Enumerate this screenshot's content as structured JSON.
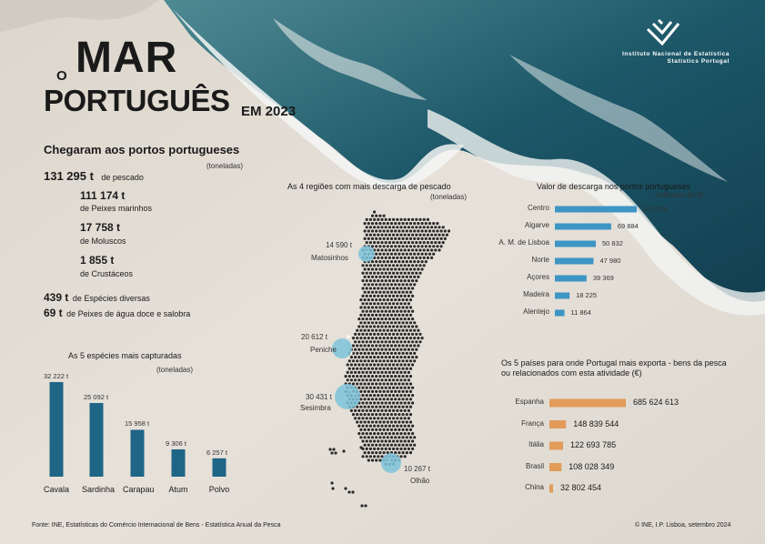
{
  "colors": {
    "bar_blue": "#1f6586",
    "bar_orange": "#e39b5a",
    "highlight": "#7ec3da",
    "sand": "#e4dfd6",
    "ocean": "#1d5366"
  },
  "title": {
    "o": "O",
    "mar": "MAR",
    "portugues": "PORTUGUÊS",
    "em": "EM 2023"
  },
  "logo": {
    "line1": "Instituto Nacional de Estatística",
    "line2": "Statistics Portugal"
  },
  "landings": {
    "heading": "Chegaram aos portos portugueses",
    "unit": "(toneladas)",
    "total_value": "131 295 t",
    "total_label": "de pescado",
    "items": [
      {
        "value": "111 174 t",
        "label": "de Peixes marinhos"
      },
      {
        "value": "17 758 t",
        "label": "de Moluscos"
      },
      {
        "value": "1 855 t",
        "label": "de Crustáceos"
      }
    ],
    "extra": [
      {
        "value": "439 t",
        "label": "de Espécies diversas"
      },
      {
        "value": "69 t",
        "label": "de Peixes de água doce e salobra"
      }
    ]
  },
  "map": {
    "title": "As 4 regiões com mais descarga de pescado",
    "unit": "(toneladas)",
    "regions": [
      {
        "value": "14 590 t",
        "name": "Matosinhos"
      },
      {
        "value": "20 612 t",
        "name": "Peniche"
      },
      {
        "value": "30 431 t",
        "name": "Sesimbra"
      },
      {
        "value": "10 267 t",
        "name": "Olhão"
      }
    ]
  },
  "footer": {
    "source": "Fonte: INE, Estatísticas do Comércio Internacional de Bens - Estatística Anual da Pesca",
    "copyright": "© INE, I.P. Lisboa, setembro 2024"
  },
  "chart_data": [
    {
      "type": "bar",
      "title": "As 5 espécies mais capturadas",
      "unit": "(toneladas)",
      "orientation": "vertical",
      "categories": [
        "Cavala",
        "Sardinha",
        "Carapau",
        "Atum",
        "Polvo"
      ],
      "values": [
        32222,
        25092,
        15958,
        9306,
        6257
      ],
      "labels": [
        "32 222 t",
        "25 092 t",
        "15 958 t",
        "9 306 t",
        "6 257 t"
      ],
      "color": "#1f6586"
    },
    {
      "type": "bar",
      "title": "Valor de descarga nos portos portugueses",
      "unit": "(milhares de €)",
      "orientation": "horizontal",
      "categories": [
        "Centro",
        "Algarve",
        "A. M. de Lisboa",
        "Norte",
        "Açores",
        "Madeira",
        "Alentejo"
      ],
      "values": [
        101639,
        69884,
        50832,
        47980,
        39369,
        18225,
        11864
      ],
      "labels": [
        "101 639",
        "69 884",
        "50 832",
        "47 980",
        "39 369",
        "18 225",
        "11 864"
      ],
      "color": "#3d95c4"
    },
    {
      "type": "bar",
      "title": "Os 5 países para onde Portugal mais exporta - bens da pesca ou relacionados com esta atividade (€)",
      "orientation": "horizontal",
      "categories": [
        "Espanha",
        "França",
        "Itália",
        "Brasil",
        "China"
      ],
      "values": [
        685624613,
        148839544,
        122693785,
        108028349,
        32802454
      ],
      "labels": [
        "685 624 613",
        "148 839 544",
        "122 693 785",
        "108 028 349",
        "32 802 454"
      ],
      "color": "#e39b5a"
    }
  ]
}
